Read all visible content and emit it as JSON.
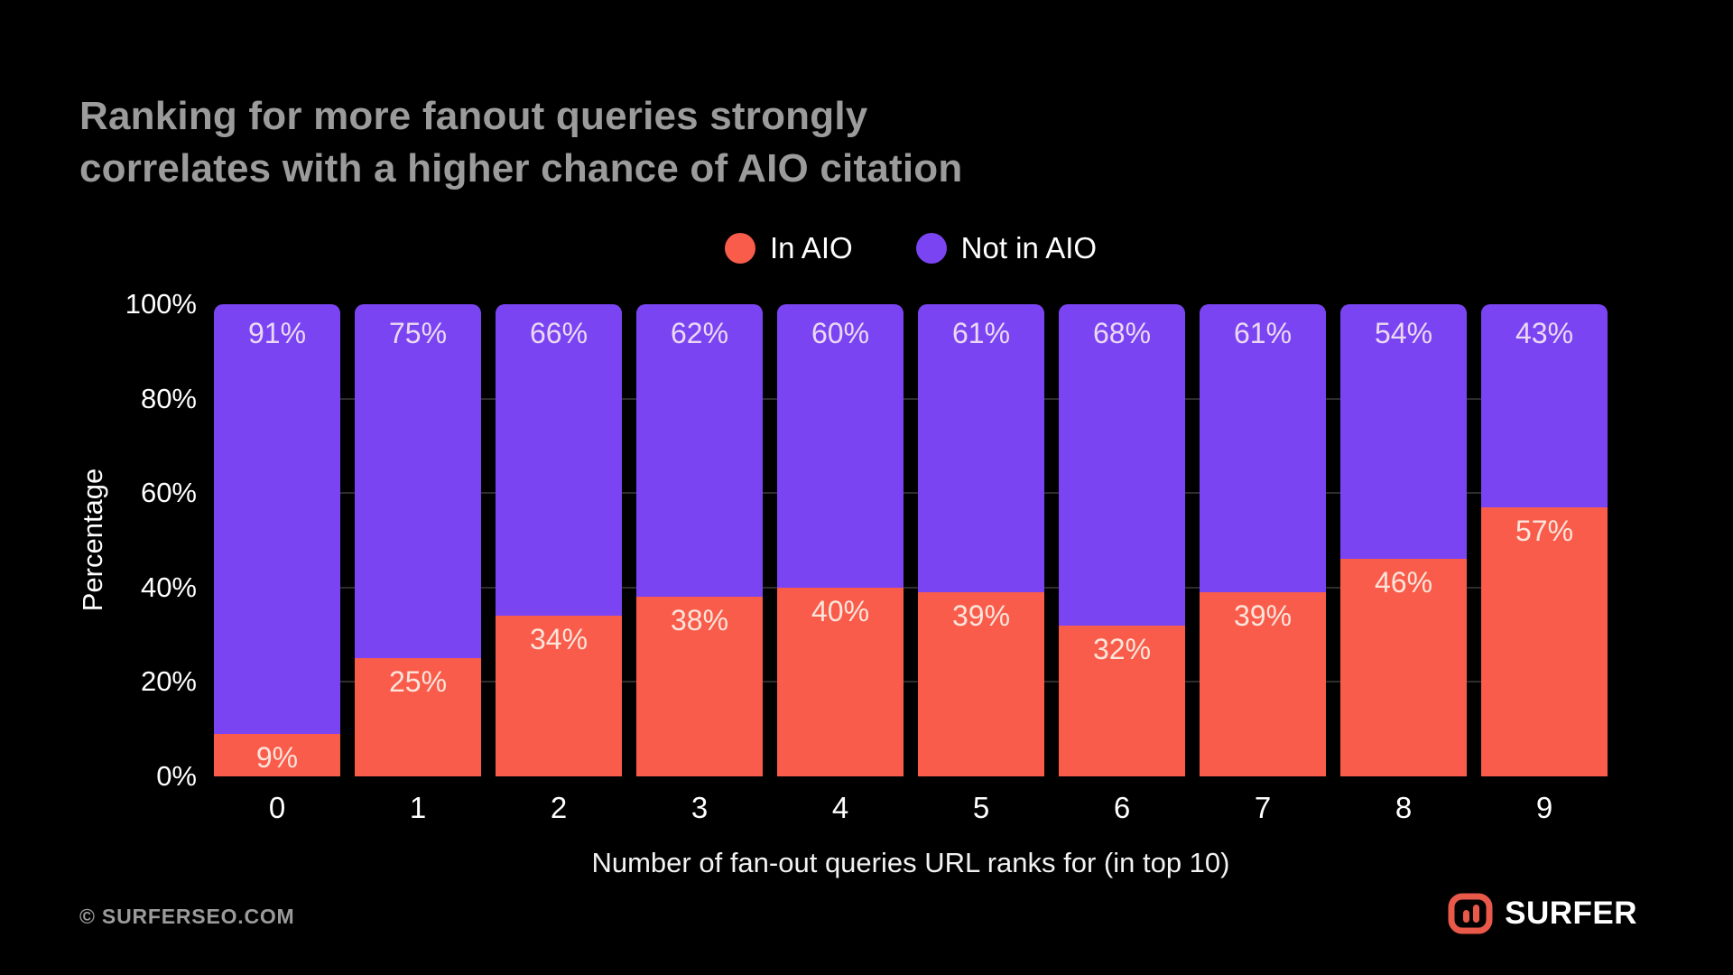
{
  "title": {
    "line1": "Ranking for more fanout queries strongly",
    "line2": "correlates with a higher chance of AIO citation"
  },
  "legend": [
    {
      "label": "In AIO",
      "color": "#F95C4B"
    },
    {
      "label": "Not in AIO",
      "color": "#7B44F3"
    }
  ],
  "chart_data": {
    "type": "bar",
    "stacked": true,
    "title": "Ranking for more fanout queries strongly correlates with a higher chance of AIO citation",
    "categories": [
      "0",
      "1",
      "2",
      "3",
      "4",
      "5",
      "6",
      "7",
      "8",
      "9"
    ],
    "series": [
      {
        "name": "In AIO",
        "color": "#F95C4B",
        "values": [
          9,
          25,
          34,
          38,
          40,
          39,
          32,
          39,
          46,
          57
        ]
      },
      {
        "name": "Not in AIO",
        "color": "#7B44F3",
        "values": [
          91,
          75,
          66,
          62,
          60,
          61,
          68,
          61,
          54,
          43
        ]
      }
    ],
    "value_suffix": "%",
    "xlabel": "Number of fan-out queries URL ranks for (in top 10)",
    "ylabel": "Percentage",
    "ylim": [
      0,
      100
    ],
    "yticks": [
      "0%",
      "20%",
      "40%",
      "60%",
      "80%",
      "100%"
    ],
    "grid": true,
    "legend_position": "top-center"
  },
  "colors": {
    "background": "#000000",
    "title_text": "#9b9b9b",
    "axis_text": "#ffffff",
    "gridline": "#2d2d2d",
    "in_aio": "#F95C4B",
    "not_in_aio": "#7B44F3",
    "label_on_red": "#FBE5DB",
    "label_on_purple": "#EBD9F2",
    "brand_accent": "#E9594A"
  },
  "footer": {
    "copyright": "© SURFERSEO.COM",
    "brand": "SURFER",
    "brand_icon": "surfer-equalizer-icon"
  }
}
